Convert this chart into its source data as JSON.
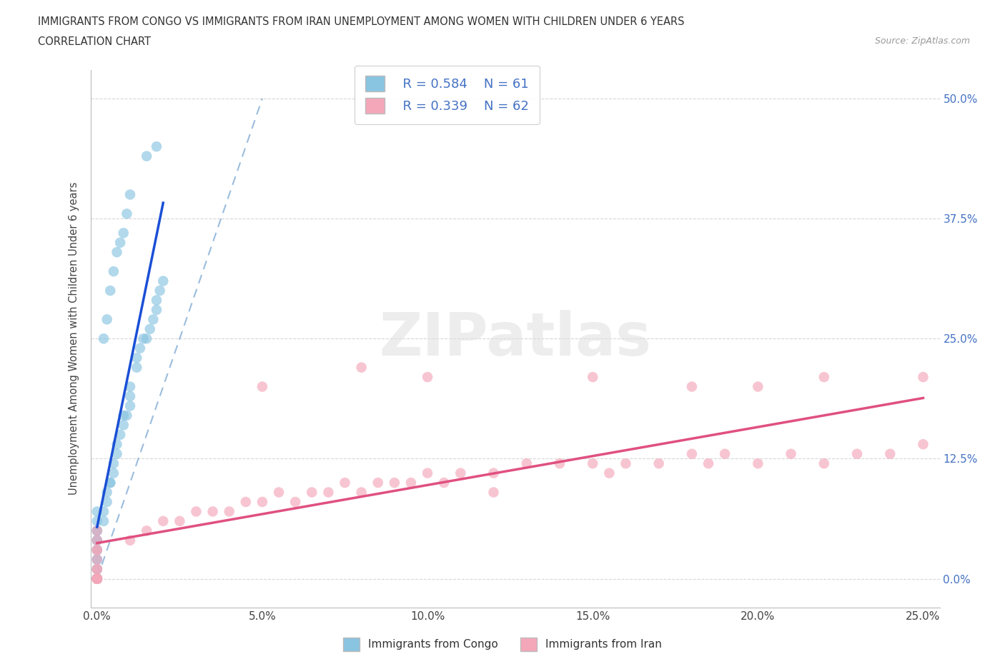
{
  "title_line1": "IMMIGRANTS FROM CONGO VS IMMIGRANTS FROM IRAN UNEMPLOYMENT AMONG WOMEN WITH CHILDREN UNDER 6 YEARS",
  "title_line2": "CORRELATION CHART",
  "source_text": "Source: ZipAtlas.com",
  "ylabel": "Unemployment Among Women with Children Under 6 years",
  "xlim": [
    -0.002,
    0.255
  ],
  "ylim": [
    -0.03,
    0.53
  ],
  "xtick_vals": [
    0.0,
    0.05,
    0.1,
    0.15,
    0.2,
    0.25
  ],
  "xtick_labels": [
    "0.0%",
    "5.0%",
    "10.0%",
    "15.0%",
    "20.0%",
    "25.0%"
  ],
  "ytick_vals": [
    0.0,
    0.125,
    0.25,
    0.375,
    0.5
  ],
  "ytick_labels": [
    "0.0%",
    "12.5%",
    "25.0%",
    "37.5%",
    "50.0%"
  ],
  "congo_color": "#89c4e1",
  "iran_color": "#f4a7b9",
  "congo_trend_color": "#1a4fd6",
  "iran_trend_color": "#e05080",
  "ref_line_color": "#6699cc",
  "watermark_text": "ZIPatlas",
  "legend_r_congo": "R = 0.584",
  "legend_n_congo": "N = 61",
  "legend_r_iran": "R = 0.339",
  "legend_n_iran": "N = 62",
  "legend_label_congo": "Immigrants from Congo",
  "legend_label_iran": "Immigrants from Iran",
  "congo_x": [
    0.0,
    0.0,
    0.0,
    0.0,
    0.0,
    0.0,
    0.0,
    0.0,
    0.0,
    0.0,
    0.0,
    0.0,
    0.0,
    0.0,
    0.0,
    0.0,
    0.0,
    0.0,
    0.0,
    0.0,
    0.0,
    0.0,
    0.002,
    0.002,
    0.003,
    0.003,
    0.004,
    0.004,
    0.005,
    0.005,
    0.006,
    0.006,
    0.007,
    0.008,
    0.008,
    0.009,
    0.01,
    0.01,
    0.01,
    0.012,
    0.012,
    0.013,
    0.014,
    0.015,
    0.016,
    0.017,
    0.018,
    0.018,
    0.019,
    0.02,
    0.002,
    0.003,
    0.004,
    0.005,
    0.006,
    0.007,
    0.008,
    0.009,
    0.01,
    0.015,
    0.018
  ],
  "congo_y": [
    0.0,
    0.0,
    0.0,
    0.0,
    0.0,
    0.0,
    0.0,
    0.0,
    0.0,
    0.0,
    0.01,
    0.01,
    0.02,
    0.02,
    0.03,
    0.03,
    0.04,
    0.04,
    0.05,
    0.05,
    0.06,
    0.07,
    0.06,
    0.07,
    0.08,
    0.09,
    0.1,
    0.1,
    0.11,
    0.12,
    0.13,
    0.14,
    0.15,
    0.16,
    0.17,
    0.17,
    0.18,
    0.19,
    0.2,
    0.22,
    0.23,
    0.24,
    0.25,
    0.25,
    0.26,
    0.27,
    0.28,
    0.29,
    0.3,
    0.31,
    0.25,
    0.27,
    0.3,
    0.32,
    0.34,
    0.35,
    0.36,
    0.38,
    0.4,
    0.44,
    0.45
  ],
  "iran_x": [
    0.0,
    0.0,
    0.0,
    0.0,
    0.0,
    0.0,
    0.0,
    0.0,
    0.0,
    0.0,
    0.0,
    0.0,
    0.0,
    0.0,
    0.0,
    0.0,
    0.01,
    0.015,
    0.02,
    0.025,
    0.03,
    0.035,
    0.04,
    0.045,
    0.05,
    0.055,
    0.06,
    0.065,
    0.07,
    0.075,
    0.08,
    0.085,
    0.09,
    0.095,
    0.1,
    0.105,
    0.11,
    0.12,
    0.13,
    0.14,
    0.15,
    0.155,
    0.16,
    0.17,
    0.18,
    0.185,
    0.19,
    0.2,
    0.21,
    0.22,
    0.23,
    0.24,
    0.25,
    0.05,
    0.08,
    0.1,
    0.12,
    0.15,
    0.18,
    0.2,
    0.22,
    0.25
  ],
  "iran_y": [
    0.0,
    0.0,
    0.0,
    0.0,
    0.0,
    0.0,
    0.0,
    0.0,
    0.0,
    0.01,
    0.01,
    0.02,
    0.03,
    0.03,
    0.04,
    0.05,
    0.04,
    0.05,
    0.06,
    0.06,
    0.07,
    0.07,
    0.07,
    0.08,
    0.08,
    0.09,
    0.08,
    0.09,
    0.09,
    0.1,
    0.09,
    0.1,
    0.1,
    0.1,
    0.11,
    0.1,
    0.11,
    0.11,
    0.12,
    0.12,
    0.12,
    0.11,
    0.12,
    0.12,
    0.13,
    0.12,
    0.13,
    0.12,
    0.13,
    0.12,
    0.13,
    0.13,
    0.14,
    0.2,
    0.22,
    0.21,
    0.09,
    0.21,
    0.2,
    0.2,
    0.21,
    0.21
  ]
}
